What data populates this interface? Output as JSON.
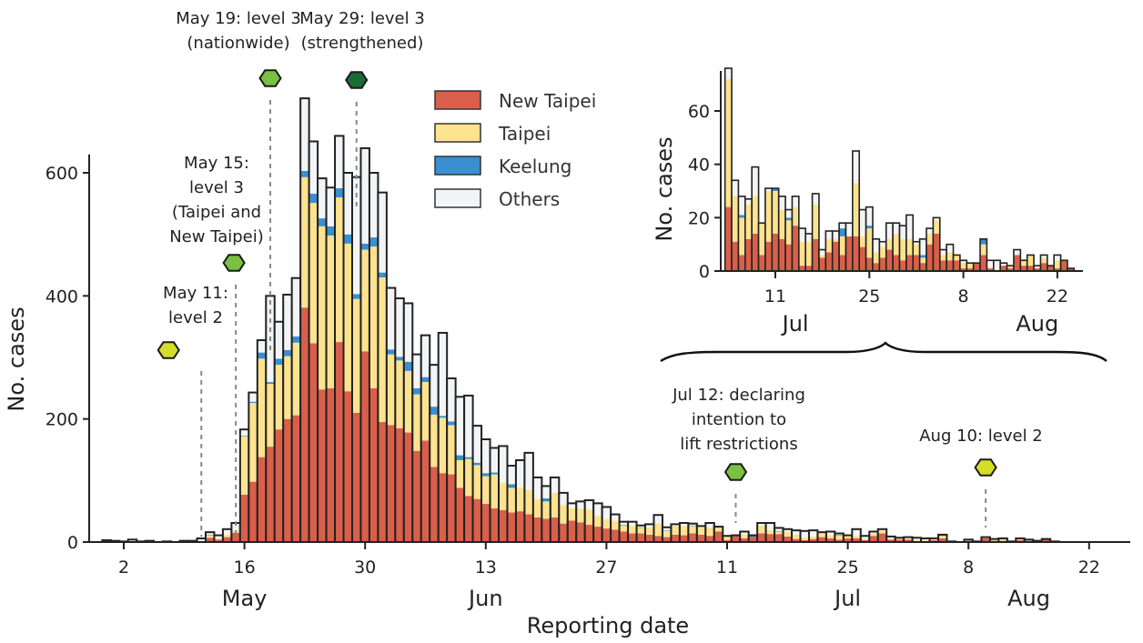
{
  "chart_data": [
    {
      "type": "bar",
      "stacked": true,
      "title": "",
      "xlabel": "Reporting date",
      "ylabel": "No. cases",
      "ylim": [
        0,
        600
      ],
      "yticks": [
        0,
        200,
        400,
        600
      ],
      "xticks": [
        {
          "date": "May 2",
          "label": "2"
        },
        {
          "date": "May 16",
          "label": "16"
        },
        {
          "date": "May 30",
          "label": "30"
        },
        {
          "date": "Jun 13",
          "label": "13"
        },
        {
          "date": "Jun 27",
          "label": "27"
        },
        {
          "date": "Jul 11",
          "label": "11"
        },
        {
          "date": "Jul 25",
          "label": "25"
        },
        {
          "date": "Aug 8",
          "label": "8"
        },
        {
          "date": "Aug 22",
          "label": "22"
        }
      ],
      "month_labels": [
        {
          "date": "May 16",
          "label": "May"
        },
        {
          "date": "Jun 13",
          "label": "Jun"
        },
        {
          "date": "Jul 25",
          "label": "Jul"
        },
        {
          "date": "Aug 15",
          "label": "Aug"
        }
      ],
      "start_date": "Apr 30",
      "legend": {
        "position": "top-center",
        "entries": [
          {
            "name": "New Taipei",
            "color": "#d95f4b"
          },
          {
            "name": "Taipei",
            "color": "#fde38f"
          },
          {
            "name": "Keelung",
            "color": "#3a8fd0"
          },
          {
            "name": "Others",
            "color": "#f3f4f6"
          }
        ]
      },
      "series": [
        {
          "name": "New Taipei",
          "values": [
            1,
            1,
            0,
            1,
            0,
            1,
            0,
            0,
            0,
            1,
            0,
            0,
            7,
            4,
            8,
            15,
            77,
            98,
            138,
            155,
            183,
            200,
            206,
            381,
            323,
            248,
            250,
            325,
            245,
            210,
            310,
            250,
            195,
            190,
            185,
            178,
            148,
            165,
            122,
            112,
            110,
            88,
            75,
            70,
            62,
            55,
            52,
            48,
            50,
            45,
            40,
            38,
            40,
            30,
            35,
            32,
            28,
            25,
            22,
            20,
            17,
            14,
            14,
            12,
            10,
            8,
            12,
            11,
            14,
            12,
            10,
            17,
            3,
            11,
            6,
            8,
            14,
            13,
            13,
            9,
            5,
            3,
            5,
            8,
            6,
            4,
            6,
            6,
            3,
            10,
            14,
            4,
            4,
            4,
            1,
            1,
            3,
            6,
            1,
            0,
            2,
            1,
            6,
            2,
            2,
            1,
            3,
            2,
            1,
            4,
            1
          ]
        },
        {
          "name": "Taipei",
          "values": [
            0,
            0,
            0,
            0,
            0,
            0,
            0,
            0,
            0,
            0,
            0,
            0,
            4,
            2,
            4,
            4,
            95,
            128,
            160,
            102,
            105,
            102,
            118,
            212,
            228,
            265,
            248,
            235,
            240,
            185,
            165,
            230,
            235,
            115,
            110,
            100,
            92,
            95,
            85,
            90,
            80,
            45,
            60,
            55,
            45,
            55,
            44,
            40,
            38,
            40,
            30,
            28,
            40,
            30,
            20,
            22,
            25,
            18,
            15,
            15,
            10,
            13,
            9,
            12,
            20,
            10,
            14,
            15,
            12,
            11,
            13,
            7,
            6,
            0,
            6,
            0,
            13,
            6,
            4,
            8,
            7,
            4,
            4,
            6,
            5,
            7,
            4,
            4,
            2,
            4,
            5,
            2,
            3,
            2,
            2,
            2,
            1,
            4,
            0,
            0,
            0,
            0,
            1,
            2,
            4,
            0,
            2,
            0,
            0,
            0,
            0
          ]
        },
        {
          "name": "Keelung",
          "values": [
            0,
            0,
            0,
            0,
            0,
            0,
            0,
            0,
            0,
            0,
            0,
            0,
            1,
            0,
            0,
            0,
            1,
            2,
            10,
            3,
            10,
            10,
            10,
            10,
            15,
            13,
            15,
            15,
            15,
            8,
            10,
            15,
            8,
            8,
            6,
            15,
            10,
            8,
            13,
            3,
            6,
            8,
            3,
            4,
            5,
            3,
            0,
            6,
            0,
            0,
            0,
            5,
            0,
            0,
            0,
            0,
            0,
            0,
            0,
            0,
            1,
            0,
            1,
            0,
            0,
            1,
            0,
            0,
            1,
            0,
            0,
            0,
            0,
            0,
            0,
            3,
            0,
            0,
            1,
            0,
            0,
            0,
            0,
            0,
            0,
            1,
            0,
            0,
            0,
            0,
            0,
            0,
            0,
            0,
            0,
            0,
            0,
            2,
            0,
            0,
            0,
            0,
            0,
            0,
            0,
            0,
            0,
            0,
            0,
            0,
            0
          ]
        },
        {
          "name": "Others",
          "values": [
            2,
            1,
            1,
            3,
            1,
            1,
            0,
            1,
            0,
            1,
            2,
            6,
            4,
            5,
            9,
            12,
            10,
            15,
            20,
            140,
            60,
            90,
            95,
            118,
            85,
            65,
            63,
            85,
            100,
            190,
            155,
            105,
            130,
            100,
            95,
            95,
            55,
            68,
            68,
            135,
            70,
            95,
            100,
            60,
            55,
            40,
            60,
            30,
            45,
            60,
            35,
            20,
            25,
            20,
            8,
            12,
            15,
            20,
            20,
            10,
            5,
            6,
            3,
            5,
            14,
            5,
            3,
            5,
            3,
            3,
            8,
            1,
            1,
            0,
            5,
            0,
            4,
            12,
            5,
            4,
            7,
            11,
            10,
            2,
            6,
            2,
            1,
            11,
            5,
            3,
            2,
            3,
            0,
            2,
            4,
            3,
            2,
            0,
            0,
            0,
            2,
            0,
            1,
            1,
            0,
            0,
            1,
            2,
            1,
            1,
            0
          ]
        }
      ],
      "annotations": [
        {
          "date": "May 11",
          "text": [
            "May 11:",
            "level 2"
          ],
          "marker_color": "#d4de28"
        },
        {
          "date": "May 15",
          "text": [
            "May 15:",
            "level 3",
            "(Taipei and",
            "New Taipei)"
          ],
          "marker_color": "#79c043"
        },
        {
          "date": "May 19",
          "text": [
            "May 19: level 3",
            "(nationwide)"
          ],
          "marker_color": "#79c043"
        },
        {
          "date": "May 29",
          "text": [
            "May 29: level 3",
            "(strengthened)"
          ],
          "marker_color": "#1a6b35"
        },
        {
          "date": "Jul 12",
          "text": [
            "Jul 12: declaring",
            "intention to",
            "lift restrictions"
          ],
          "marker_color": "#79c043"
        },
        {
          "date": "Aug 10",
          "text": [
            "Aug 10: level 2"
          ],
          "marker_color": "#d4de28"
        }
      ]
    },
    {
      "type": "bar",
      "stacked": true,
      "role": "inset",
      "title": "",
      "xlabel": "",
      "ylabel": "No. cases",
      "ylim": [
        0,
        75
      ],
      "yticks": [
        0,
        20,
        40,
        60
      ],
      "start_date": "Jul 4",
      "xticks": [
        {
          "date": "Jul 11",
          "label": "11"
        },
        {
          "date": "Jul 25",
          "label": "25"
        },
        {
          "date": "Aug 8",
          "label": "8"
        },
        {
          "date": "Aug 22",
          "label": "22"
        }
      ],
      "month_labels": [
        {
          "date": "Jul 14",
          "label": "Jul"
        },
        {
          "date": "Aug 19",
          "label": "Aug"
        }
      ],
      "series": [
        {
          "name": "New Taipei",
          "values": [
            24,
            11,
            6,
            12,
            14,
            6,
            11,
            14,
            12,
            10,
            17,
            2,
            2,
            12,
            5,
            7,
            11,
            6,
            13,
            13,
            9,
            5,
            3,
            5,
            8,
            6,
            4,
            6,
            6,
            3,
            10,
            14,
            4,
            4,
            4,
            1,
            1,
            3,
            6,
            1,
            0,
            2,
            1,
            6,
            2,
            2,
            1,
            3,
            2,
            1,
            4,
            1
          ]
        },
        {
          "name": "Taipei",
          "values": [
            48,
            17,
            14,
            13,
            14,
            12,
            19,
            16,
            11,
            9,
            7,
            9,
            9,
            13,
            1,
            5,
            1,
            7,
            0,
            20,
            4,
            11,
            4,
            4,
            4,
            8,
            8,
            6,
            4,
            2,
            4,
            5,
            2,
            3,
            2,
            2,
            2,
            0,
            4,
            0,
            0,
            0,
            1,
            0,
            2,
            4,
            0,
            2,
            0,
            3,
            0,
            0
          ]
        },
        {
          "name": "Keelung",
          "values": [
            0,
            0,
            1,
            0,
            0,
            0,
            0,
            1,
            0,
            1,
            0,
            0,
            0,
            0,
            0,
            0,
            0,
            3,
            0,
            0,
            0,
            1,
            0,
            0,
            0,
            0,
            0,
            0,
            0,
            1,
            0,
            0,
            0,
            0,
            0,
            0,
            0,
            0,
            2,
            0,
            0,
            0,
            0,
            0,
            0,
            0,
            0,
            0,
            0,
            0,
            0,
            0
          ]
        },
        {
          "name": "Others",
          "values": [
            4,
            6,
            7,
            2,
            11,
            0,
            1,
            0,
            5,
            3,
            4,
            5,
            3,
            4,
            2,
            3,
            3,
            2,
            5,
            12,
            10,
            7,
            5,
            2,
            6,
            4,
            5,
            9,
            1,
            6,
            2,
            1,
            2,
            3,
            0,
            1,
            0,
            0,
            0,
            3,
            4,
            1,
            0,
            2,
            0,
            0,
            1,
            1,
            0,
            2,
            0,
            0
          ]
        }
      ]
    }
  ],
  "inset_range_brace": {
    "from": "Jul 4",
    "to": "Aug 23"
  }
}
